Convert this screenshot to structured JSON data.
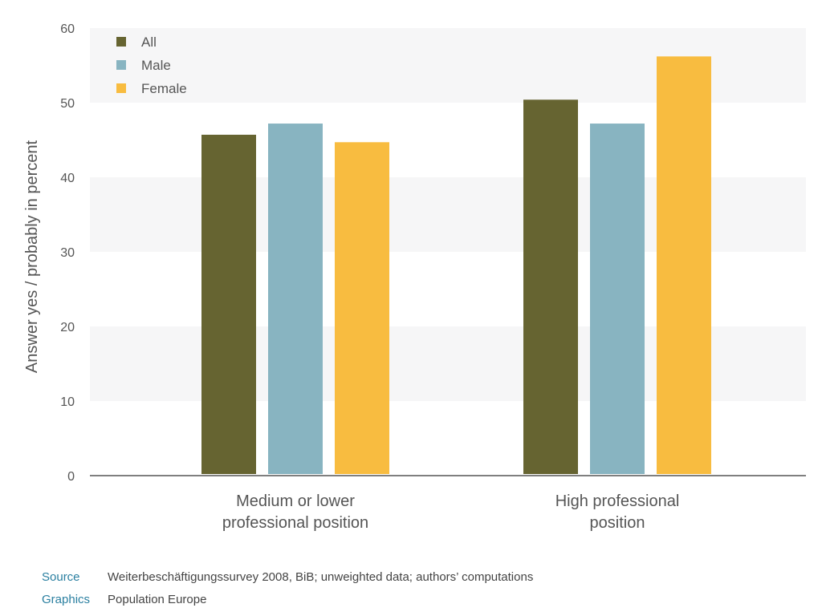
{
  "chart_data": {
    "type": "bar",
    "title": "",
    "xlabel": "",
    "ylabel": "Answer yes / probably in percent",
    "ylim": [
      0,
      60
    ],
    "yticks": [
      0,
      10,
      20,
      30,
      40,
      50,
      60
    ],
    "grid": "alternating horizontal bands",
    "legend_position": "top-left",
    "categories": [
      [
        "Medium or lower",
        "professional position"
      ],
      [
        "High professional",
        "position"
      ]
    ],
    "series": [
      {
        "name": "All",
        "color": "#666431",
        "values": [
          45.7,
          50.4
        ]
      },
      {
        "name": "Male",
        "color": "#88b4c1",
        "values": [
          47.2,
          47.2
        ]
      },
      {
        "name": "Female",
        "color": "#f8bc40",
        "values": [
          44.7,
          56.2
        ]
      }
    ]
  },
  "footer": {
    "source_key": "Source",
    "source_text": "Weiterbeschäftigungssurvey 2008, BiB; unweighted data; authors’ computations",
    "graphics_key": "Graphics",
    "graphics_text": "Population Europe"
  }
}
